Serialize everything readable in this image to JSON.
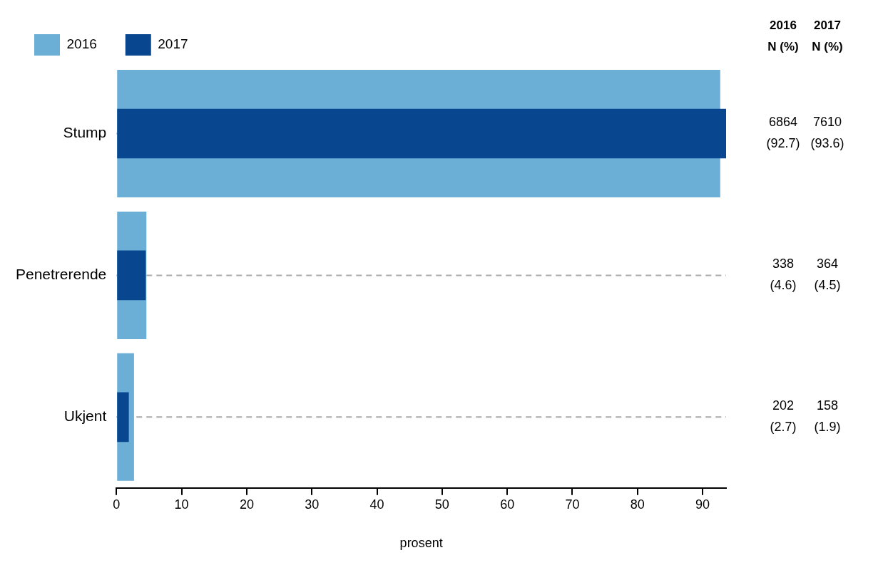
{
  "chart_data": {
    "type": "bar",
    "orientation": "horizontal",
    "xlabel": "prosent",
    "categories": [
      "Stump",
      "Penetrerende",
      "Ukjent"
    ],
    "series": [
      {
        "name": "2016",
        "color": "#6baed6",
        "values": [
          92.7,
          4.6,
          2.7
        ],
        "value_labels": [
          "6864\n(92.7)",
          "338\n(4.6)",
          "202\n(2.7)"
        ]
      },
      {
        "name": "2017",
        "color": "#08468f",
        "values": [
          93.6,
          4.5,
          1.9
        ],
        "value_labels": [
          "7610\n(93.6)",
          "364\n(4.5)",
          "158\n(1.9)"
        ]
      }
    ],
    "xlim": [
      0,
      93.6
    ],
    "xticks": [
      0,
      10,
      20,
      30,
      40,
      50,
      60,
      70,
      80,
      90
    ],
    "grid": "y",
    "legend": "top left",
    "annotations": [
      "N (%)"
    ]
  }
}
